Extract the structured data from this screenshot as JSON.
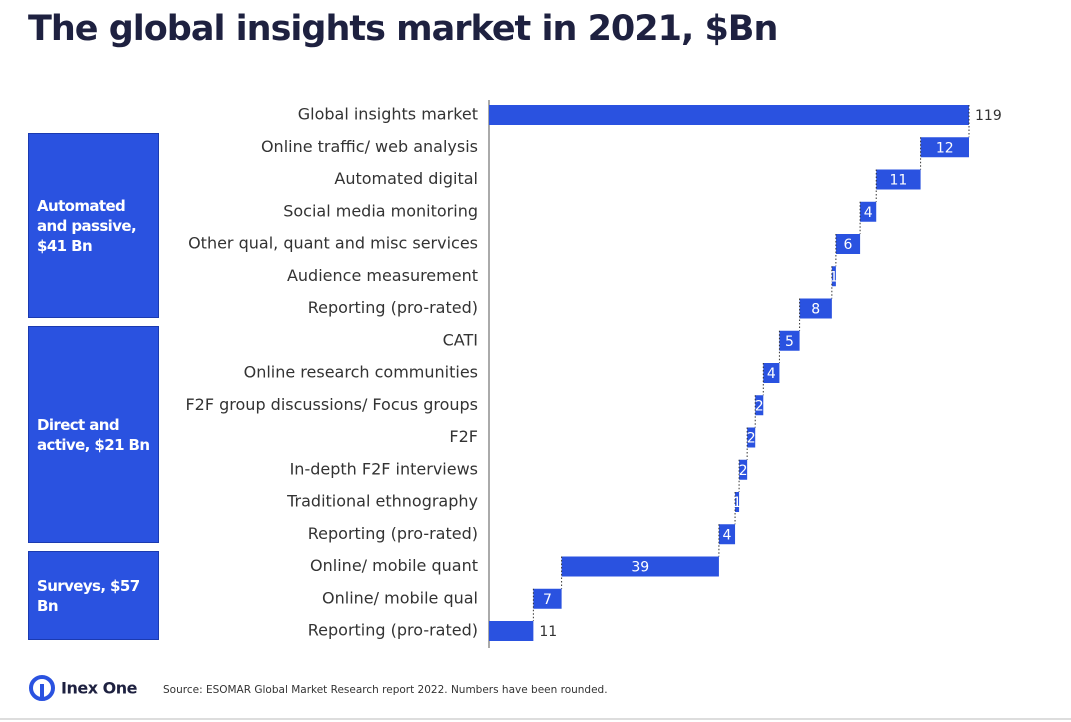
{
  "chart_data": {
    "type": "waterfall",
    "title": "The global insights market in 2021, $Bn",
    "categories": [
      "Global insights market",
      "Online traffic/ web analysis",
      "Automated digital",
      "Social media monitoring",
      "Other qual, quant and misc services",
      "Audience measurement",
      "Reporting (pro-rated)",
      "CATI",
      "Online research communities",
      "F2F group discussions/ Focus groups",
      "F2F",
      "In-depth F2F interviews",
      "Traditional ethnography",
      "Reporting (pro-rated)",
      "Online/ mobile quant",
      "Online/ mobile qual",
      "Reporting (pro-rated)"
    ],
    "values": [
      119,
      12,
      11,
      4,
      6,
      1,
      8,
      5,
      4,
      2,
      2,
      2,
      1,
      4,
      39,
      7,
      11
    ],
    "color": "#2a52e0",
    "groups": [
      "Automated and passive, $41 Bn",
      "Direct and active, $21 Bn",
      "Surveys, $57 Bn"
    ]
  },
  "footer": {
    "brand": "Inex One",
    "source": "Source: ESOMAR Global Market Research report 2022. Numbers have been rounded."
  }
}
